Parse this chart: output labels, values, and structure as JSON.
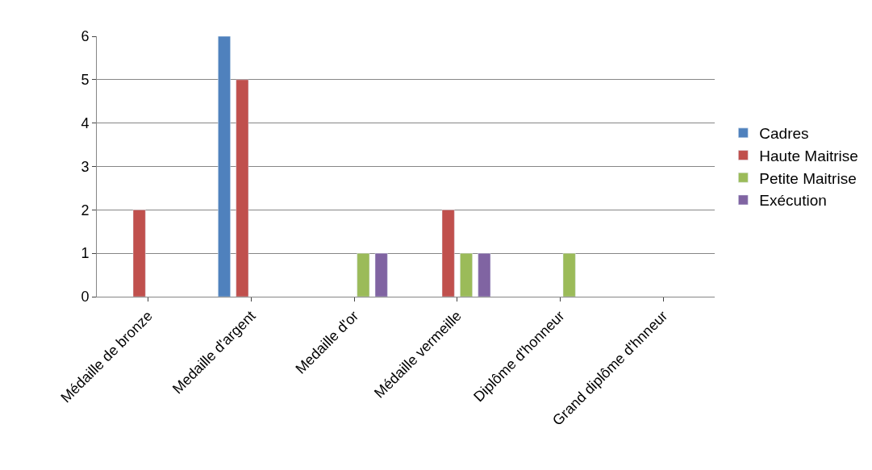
{
  "chart_data": {
    "type": "bar",
    "categories": [
      "Médaille de bronze",
      "Medaille d'argent",
      "Medaille d'or",
      "Médaille vermeille",
      "Diplôme d'honneur",
      "Grand diplôme d'hnneur"
    ],
    "series": [
      {
        "name": "Cadres",
        "color": "#4f81bd",
        "values": [
          null,
          6,
          null,
          null,
          null,
          null
        ]
      },
      {
        "name": "Haute Maitrise",
        "color": "#c0504d",
        "values": [
          2,
          5,
          null,
          2,
          null,
          null
        ]
      },
      {
        "name": "Petite Maitrise",
        "color": "#9bbb59",
        "values": [
          null,
          null,
          1,
          1,
          1,
          null
        ]
      },
      {
        "name": "Exécution",
        "color": "#8064a2",
        "values": [
          null,
          null,
          1,
          1,
          null,
          null
        ]
      }
    ],
    "ylim": [
      0,
      6
    ],
    "yticks": [
      0,
      1,
      2,
      3,
      4,
      5,
      6
    ],
    "grid": "y",
    "legend": "right"
  }
}
